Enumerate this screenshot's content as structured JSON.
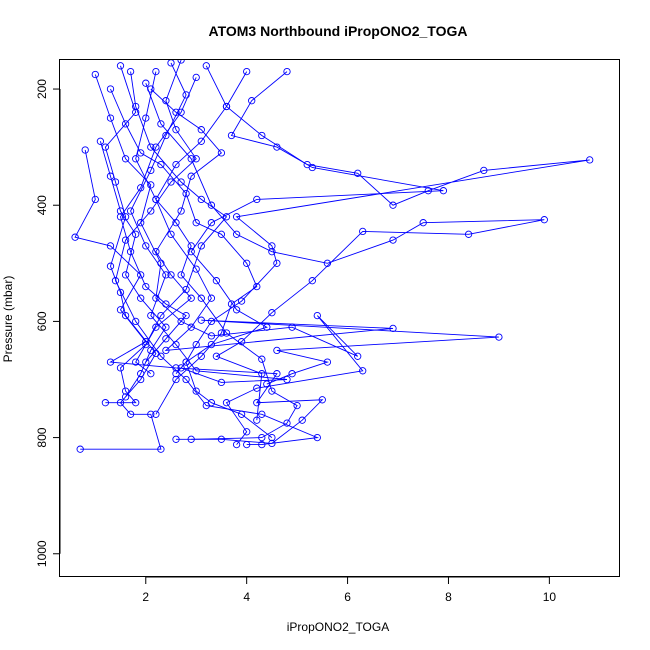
{
  "chart_data": {
    "type": "line",
    "title": "ATOM3 Northbound iPropONO2_TOGA",
    "xlabel": "iPropONO2_TOGA",
    "ylabel": "Pressure (mbar)",
    "xlim": [
      0.3,
      11.4
    ],
    "ylim": [
      1040,
      150
    ],
    "y_reversed": true,
    "x_ticks": [
      2,
      4,
      6,
      8,
      10
    ],
    "y_ticks": [
      200,
      400,
      600,
      800,
      1000
    ],
    "grid": false,
    "marker": "open-circle",
    "series_color": "#0000ff",
    "series": [
      {
        "profile": 1,
        "points": [
          [
            0.8,
            305
          ],
          [
            1.0,
            390
          ],
          [
            0.6,
            455
          ],
          [
            1.3,
            470
          ],
          [
            1.9,
            520
          ],
          [
            1.5,
            580
          ],
          [
            2.0,
            635
          ],
          [
            1.3,
            670
          ],
          [
            2.6,
            680
          ],
          [
            4.6,
            690
          ],
          [
            4.2,
            740
          ],
          [
            5.5,
            735
          ],
          [
            5.1,
            770
          ],
          [
            4.5,
            810
          ],
          [
            3.5,
            803
          ],
          [
            2.6,
            803
          ]
        ]
      },
      {
        "profile": 2,
        "points": [
          [
            1.0,
            175
          ],
          [
            1.3,
            250
          ],
          [
            1.6,
            320
          ],
          [
            2.1,
            365
          ],
          [
            1.9,
            430
          ],
          [
            2.3,
            500
          ],
          [
            2.2,
            560
          ],
          [
            2.7,
            600
          ],
          [
            3.3,
            625
          ],
          [
            4.9,
            610
          ],
          [
            6.2,
            660
          ],
          [
            5.4,
            590
          ],
          [
            6.3,
            685
          ],
          [
            4.2,
            715
          ],
          [
            3.6,
            740
          ],
          [
            4.0,
            790
          ],
          [
            3.8,
            812
          ]
        ]
      },
      {
        "profile": 3,
        "points": [
          [
            1.5,
            160
          ],
          [
            1.8,
            240
          ],
          [
            1.2,
            300
          ],
          [
            1.4,
            360
          ],
          [
            1.6,
            420
          ],
          [
            1.3,
            505
          ],
          [
            1.5,
            550
          ],
          [
            1.6,
            590
          ],
          [
            2.2,
            655
          ],
          [
            1.9,
            700
          ],
          [
            1.5,
            740
          ],
          [
            1.7,
            760
          ],
          [
            2.1,
            760
          ],
          [
            2.3,
            820
          ],
          [
            0.7,
            820
          ]
        ]
      },
      {
        "profile": 4,
        "points": [
          [
            2.2,
            170
          ],
          [
            2.0,
            250
          ],
          [
            1.8,
            320
          ],
          [
            2.2,
            390
          ],
          [
            2.6,
            430
          ],
          [
            2.9,
            470
          ],
          [
            2.7,
            520
          ],
          [
            3.1,
            560
          ],
          [
            3.6,
            620
          ],
          [
            4.3,
            665
          ],
          [
            4.5,
            720
          ],
          [
            5.0,
            745
          ],
          [
            4.8,
            775
          ],
          [
            4.3,
            800
          ],
          [
            2.9,
            803
          ]
        ]
      },
      {
        "profile": 5,
        "points": [
          [
            3.2,
            160
          ],
          [
            3.6,
            230
          ],
          [
            4.3,
            280
          ],
          [
            5.2,
            330
          ],
          [
            6.2,
            345
          ],
          [
            6.9,
            400
          ],
          [
            7.6,
            375
          ],
          [
            8.7,
            340
          ],
          [
            10.8,
            322
          ],
          [
            3.8,
            420
          ],
          [
            4.5,
            470
          ],
          [
            4.6,
            500
          ],
          [
            3.9,
            565
          ],
          [
            3.3,
            600
          ],
          [
            3.0,
            640
          ],
          [
            2.8,
            670
          ],
          [
            3.0,
            720
          ],
          [
            3.3,
            740
          ],
          [
            3.9,
            760
          ],
          [
            4.5,
            800
          ]
        ]
      },
      {
        "profile": 6,
        "points": [
          [
            2.5,
            155
          ],
          [
            2.8,
            210
          ],
          [
            2.4,
            280
          ],
          [
            2.1,
            340
          ],
          [
            1.7,
            410
          ],
          [
            2.0,
            470
          ],
          [
            2.4,
            520
          ],
          [
            2.1,
            590
          ],
          [
            2.6,
            640
          ],
          [
            3.0,
            685
          ],
          [
            4.8,
            700
          ],
          [
            3.5,
            705
          ],
          [
            2.7,
            680
          ]
        ]
      },
      {
        "profile": 7,
        "points": [
          [
            2.0,
            190
          ],
          [
            2.3,
            260
          ],
          [
            2.9,
            320
          ],
          [
            3.3,
            400
          ],
          [
            3.8,
            450
          ],
          [
            4.5,
            480
          ],
          [
            5.6,
            500
          ],
          [
            6.9,
            460
          ],
          [
            7.5,
            430
          ],
          [
            9.9,
            425
          ],
          [
            8.4,
            450
          ],
          [
            6.3,
            445
          ],
          [
            5.3,
            530
          ],
          [
            4.5,
            585
          ],
          [
            3.9,
            635
          ],
          [
            3.4,
            660
          ],
          [
            4.3,
            690
          ],
          [
            4.2,
            770
          ]
        ]
      },
      {
        "profile": 8,
        "points": [
          [
            1.7,
            170
          ],
          [
            1.8,
            230
          ],
          [
            2.1,
            300
          ],
          [
            2.7,
            360
          ],
          [
            3.1,
            390
          ],
          [
            3.6,
            420
          ],
          [
            3.1,
            470
          ],
          [
            2.8,
            545
          ],
          [
            2.3,
            590
          ],
          [
            2.0,
            640
          ],
          [
            1.5,
            680
          ],
          [
            1.6,
            720
          ],
          [
            1.8,
            740
          ],
          [
            1.2,
            740
          ]
        ]
      },
      {
        "profile": 9,
        "points": [
          [
            4.0,
            170
          ],
          [
            3.6,
            230
          ],
          [
            3.1,
            290
          ],
          [
            2.6,
            330
          ],
          [
            2.2,
            390
          ],
          [
            2.5,
            450
          ],
          [
            3.0,
            510
          ],
          [
            3.3,
            560
          ],
          [
            2.9,
            610
          ],
          [
            2.4,
            650
          ],
          [
            6.9,
            612
          ],
          [
            3.1,
            598
          ],
          [
            9.0,
            627
          ],
          [
            4.6,
            650
          ],
          [
            5.6,
            670
          ],
          [
            4.9,
            690
          ],
          [
            4.4,
            708
          ]
        ]
      },
      {
        "profile": 10,
        "points": [
          [
            1.3,
            200
          ],
          [
            1.6,
            260
          ],
          [
            1.9,
            310
          ],
          [
            2.3,
            330
          ],
          [
            2.8,
            380
          ],
          [
            3.0,
            430
          ],
          [
            3.5,
            450
          ],
          [
            4.0,
            500
          ],
          [
            4.2,
            540
          ],
          [
            3.7,
            570
          ],
          [
            3.5,
            620
          ],
          [
            3.1,
            660
          ],
          [
            2.6,
            700
          ],
          [
            2.2,
            760
          ]
        ]
      },
      {
        "profile": 11,
        "points": [
          [
            2.7,
            150
          ],
          [
            2.4,
            220
          ],
          [
            2.6,
            270
          ],
          [
            3.0,
            320
          ],
          [
            2.5,
            360
          ],
          [
            2.1,
            410
          ],
          [
            1.6,
            460
          ],
          [
            1.4,
            530
          ],
          [
            1.8,
            600
          ],
          [
            2.3,
            660
          ],
          [
            2.8,
            700
          ],
          [
            3.2,
            745
          ],
          [
            4.3,
            760
          ],
          [
            5.4,
            800
          ],
          [
            4.3,
            812
          ],
          [
            4.0,
            812
          ]
        ]
      },
      {
        "profile": 12,
        "points": [
          [
            1.1,
            290
          ],
          [
            1.3,
            350
          ],
          [
            1.5,
            410
          ],
          [
            1.8,
            450
          ],
          [
            1.6,
            520
          ],
          [
            1.9,
            560
          ],
          [
            2.4,
            610
          ],
          [
            2.1,
            650
          ],
          [
            1.9,
            690
          ],
          [
            1.6,
            730
          ]
        ]
      },
      {
        "profile": 13,
        "points": [
          [
            4.8,
            170
          ],
          [
            4.1,
            220
          ],
          [
            3.7,
            280
          ],
          [
            4.6,
            300
          ],
          [
            5.3,
            335
          ],
          [
            7.9,
            375
          ],
          [
            4.2,
            390
          ],
          [
            3.3,
            430
          ],
          [
            2.9,
            480
          ],
          [
            3.4,
            530
          ],
          [
            3.8,
            580
          ],
          [
            4.4,
            610
          ],
          [
            3.3,
            640
          ],
          [
            2.8,
            670
          ],
          [
            2.6,
            690
          ]
        ]
      },
      {
        "profile": 14,
        "points": [
          [
            2.1,
            200
          ],
          [
            2.6,
            240
          ],
          [
            3.1,
            270
          ],
          [
            3.5,
            310
          ],
          [
            2.9,
            350
          ],
          [
            2.7,
            410
          ],
          [
            2.2,
            480
          ],
          [
            2.5,
            520
          ],
          [
            2.9,
            560
          ],
          [
            2.2,
            610
          ],
          [
            1.8,
            670
          ],
          [
            2.1,
            690
          ]
        ]
      },
      {
        "profile": 15,
        "points": [
          [
            3.0,
            180
          ],
          [
            2.7,
            240
          ],
          [
            2.2,
            300
          ],
          [
            1.9,
            370
          ],
          [
            1.5,
            420
          ],
          [
            1.7,
            480
          ],
          [
            2.0,
            540
          ],
          [
            2.4,
            570
          ],
          [
            2.8,
            590
          ],
          [
            2.4,
            630
          ],
          [
            2.0,
            670
          ]
        ]
      }
    ]
  }
}
